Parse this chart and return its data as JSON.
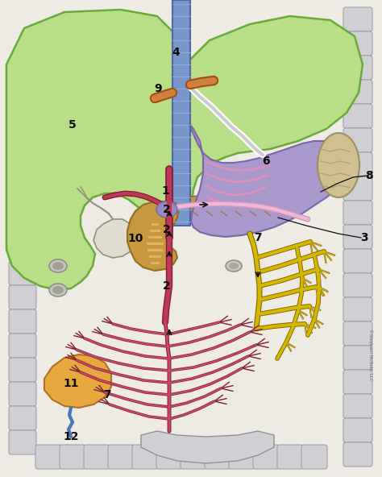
{
  "bg_color": "#ebebeb",
  "liver_color": "#b8df88",
  "liver_edge": "#6aaa3a",
  "stomach_color": "#a898cc",
  "stomach_edge": "#7868aa",
  "spleen_color": "#d0c090",
  "spleen_edge": "#a09060",
  "pancreas_color": "#c89840",
  "pancreas_edge": "#907020",
  "gallbladder_color": "#d8d8d0",
  "gallbladder_edge": "#909090",
  "portal_color": "#c03858",
  "portal_dark": "#802030",
  "aorta_color": "#7898cc",
  "aorta_edge": "#4868a8",
  "yellow_color": "#d4b800",
  "yellow_edge": "#806000",
  "intestine_color": "#cccccc",
  "intestine_edge": "#909090",
  "pink_color": "#e898b8",
  "orange_color": "#d08040",
  "orange_edge": "#a05010",
  "bladder_color": "#e8a840",
  "bladder_edge": "#b07020",
  "blue_color": "#4878b8",
  "label_fs": 10
}
